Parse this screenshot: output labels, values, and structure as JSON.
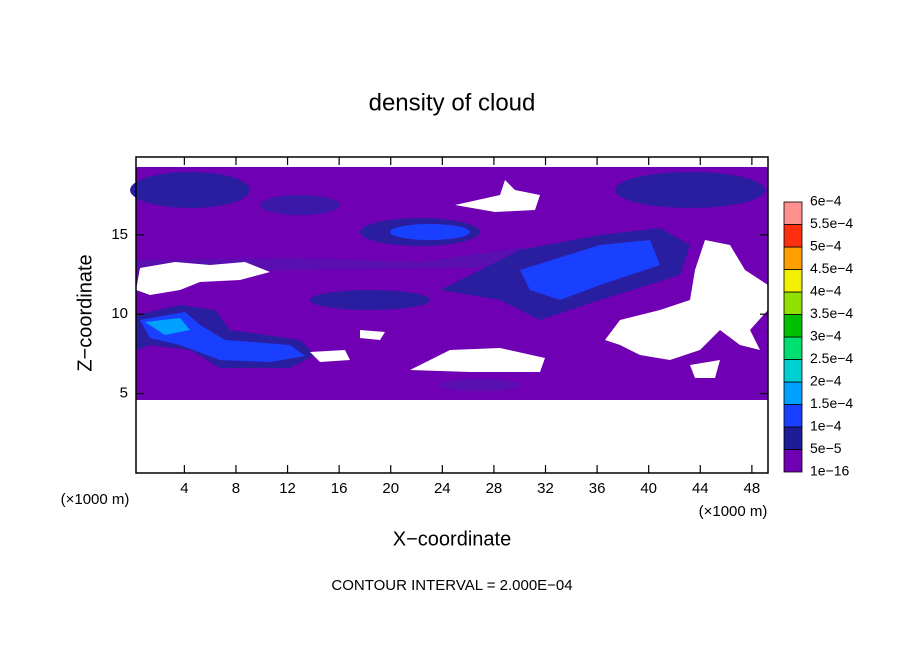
{
  "chart_data": {
    "type": "contour",
    "title": "density of cloud",
    "xlabel": "X−coordinate",
    "ylabel": "Z−coordinate",
    "xunit": "(×1000 m)",
    "yunit": "(×1000 m)",
    "footnote": "CONTOUR INTERVAL = 2.000E−04",
    "xlim": [
      0.25,
      49.25
    ],
    "xticks": [
      4,
      8,
      12,
      16,
      20,
      24,
      28,
      32,
      36,
      40,
      44,
      48
    ],
    "ylim": [
      0,
      19.9
    ],
    "yticks": [
      5,
      10,
      15
    ],
    "colorbar": {
      "levels": [
        {
          "value": 1e-16,
          "label": "1e−16"
        },
        {
          "value": 5e-05,
          "label": "5e−5"
        },
        {
          "value": 0.0001,
          "label": "1e−4"
        },
        {
          "value": 0.00015,
          "label": "1.5e−4"
        },
        {
          "value": 0.0002,
          "label": "2e−4"
        },
        {
          "value": 0.00025,
          "label": "2.5e−4"
        },
        {
          "value": 0.0003,
          "label": "3e−4"
        },
        {
          "value": 0.00035,
          "label": "3.5e−4"
        },
        {
          "value": 0.0004,
          "label": "4e−4"
        },
        {
          "value": 0.00045,
          "label": "4.5e−4"
        },
        {
          "value": 0.0005,
          "label": "5e−4"
        },
        {
          "value": 0.00055,
          "label": "5.5e−4"
        },
        {
          "value": 0.0006,
          "label": "6e−4"
        }
      ],
      "colors": [
        "#7000b4",
        "#1e1c96",
        "#1a40ff",
        "#00a0ff",
        "#00d0d0",
        "#00e070",
        "#00c000",
        "#90e000",
        "#f0f000",
        "#ffa000",
        "#ff3010",
        "#ff9090"
      ]
    }
  }
}
